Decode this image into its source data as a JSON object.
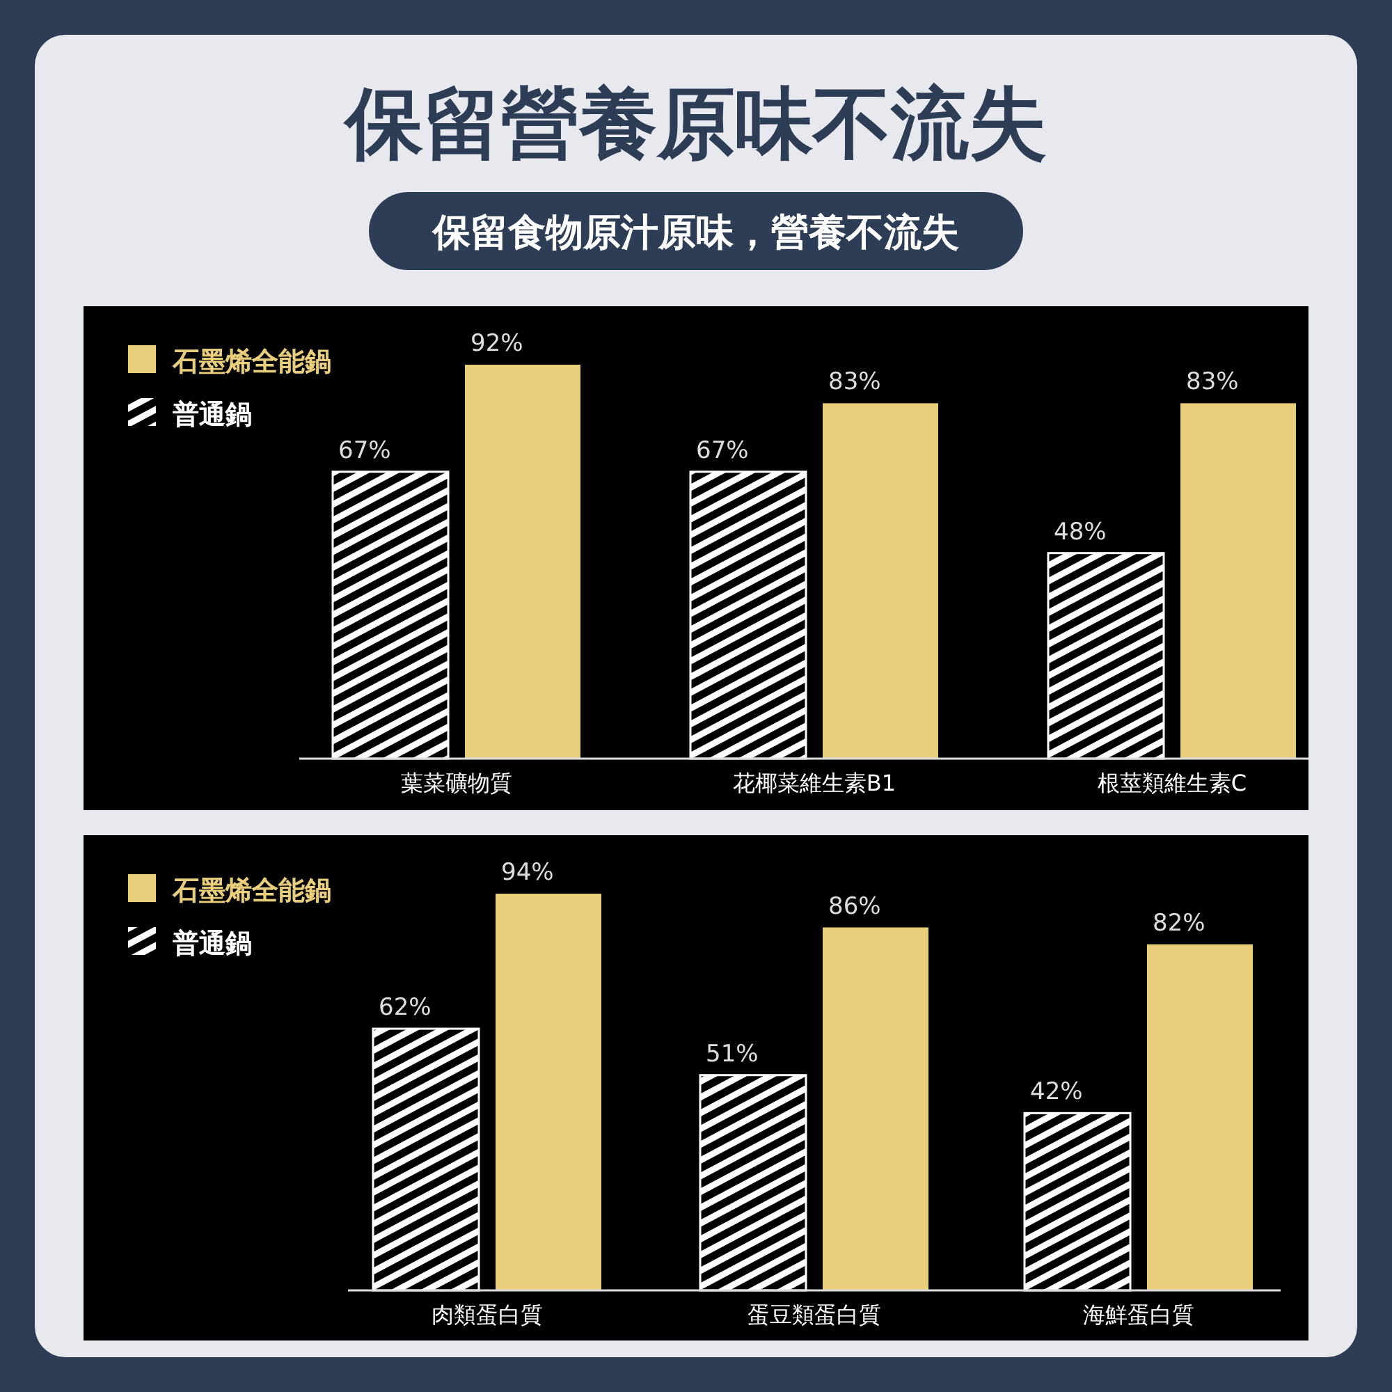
{
  "chart_data": [
    {
      "type": "bar",
      "title": "保留營養原味不流失",
      "subtitle": "保留食物原汁原味，營養不流失",
      "categories": [
        "葉菜礦物質",
        "花椰菜維生素B1",
        "根莖類維生素C"
      ],
      "series": [
        {
          "name": "普通鍋",
          "color": "#ffffff",
          "values": [
            67,
            67,
            48
          ],
          "value_labels": [
            "67%",
            "67%",
            "48%"
          ]
        },
        {
          "name": "石墨烯全能鍋",
          "color": "#e8cd7a",
          "values": [
            92,
            83,
            83
          ],
          "value_labels": [
            "92%",
            "83%",
            "83%"
          ]
        }
      ],
      "legend": "top left"
    },
    {
      "type": "bar",
      "categories": [
        "肉類蛋白質",
        "蛋豆類蛋白質",
        "海鮮蛋白質"
      ],
      "series": [
        {
          "name": "普通鍋",
          "color": "#ffffff",
          "values": [
            62,
            51,
            42
          ],
          "value_labels": [
            "62%",
            "51%",
            "42%"
          ]
        },
        {
          "name": "石墨烯全能鍋",
          "color": "#e8cd7a",
          "values": [
            94,
            86,
            82
          ],
          "value_labels": [
            "94%",
            "86%",
            "82%"
          ]
        }
      ],
      "legend": "top left"
    }
  ]
}
